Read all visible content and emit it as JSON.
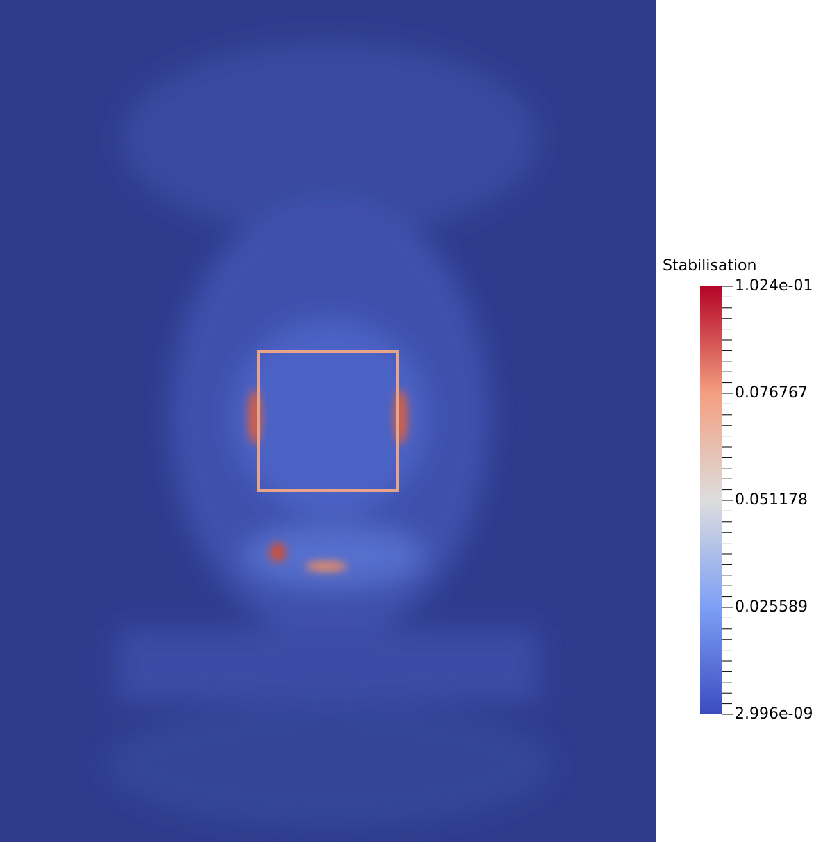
{
  "legend": {
    "title": "Stabilisation",
    "labels": [
      "1.024e-01",
      "0.076767",
      "0.051178",
      "0.025589",
      "2.996e-09"
    ]
  }
}
